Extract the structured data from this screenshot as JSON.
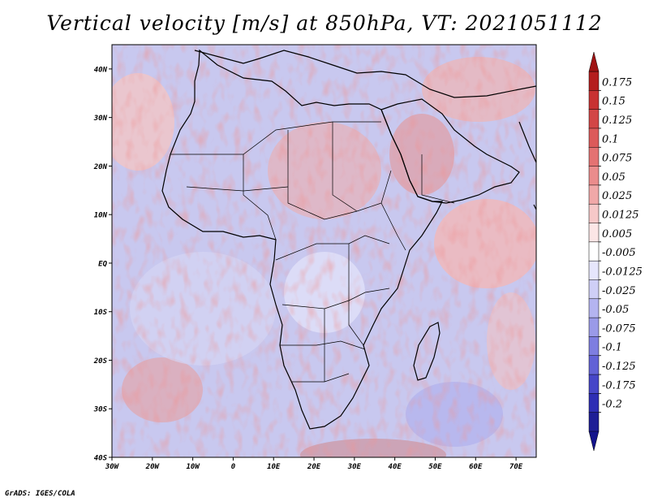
{
  "title": "Vertical velocity [m/s] at 850hPa, VT: 2021051112",
  "footer": "GrADS: IGES/COLA",
  "map": {
    "lon_range": [
      -30,
      75
    ],
    "lat_range": [
      -40,
      45
    ],
    "lat_ticks": [
      "40N",
      "30N",
      "20N",
      "10N",
      "EQ",
      "10S",
      "20S",
      "30S",
      "40S"
    ],
    "lon_ticks": [
      "30W",
      "20W",
      "10W",
      "0",
      "10E",
      "20E",
      "30E",
      "40E",
      "50E",
      "60E",
      "70E"
    ]
  },
  "colorbar": {
    "labels": [
      "0.175",
      "0.15",
      "0.125",
      "0.1",
      "0.075",
      "0.05",
      "0.025",
      "0.0125",
      "0.005",
      "-0.005",
      "-0.0125",
      "-0.025",
      "-0.05",
      "-0.075",
      "-0.1",
      "-0.125",
      "-0.175",
      "-0.2"
    ],
    "colors": [
      "#b41e1e",
      "#c83232",
      "#d24646",
      "#dc5a5a",
      "#e47272",
      "#ea8c8c",
      "#f0a8a8",
      "#f6c8c8",
      "#fce6e6",
      "#ffffff",
      "#e6e6fc",
      "#cfcff6",
      "#b4b4f0",
      "#9a9ae8",
      "#7e7ee0",
      "#6262d6",
      "#4646c8",
      "#2e2eb4",
      "#1e1e96"
    ],
    "top_color": "#a01414",
    "bottom_color": "#14148c"
  }
}
